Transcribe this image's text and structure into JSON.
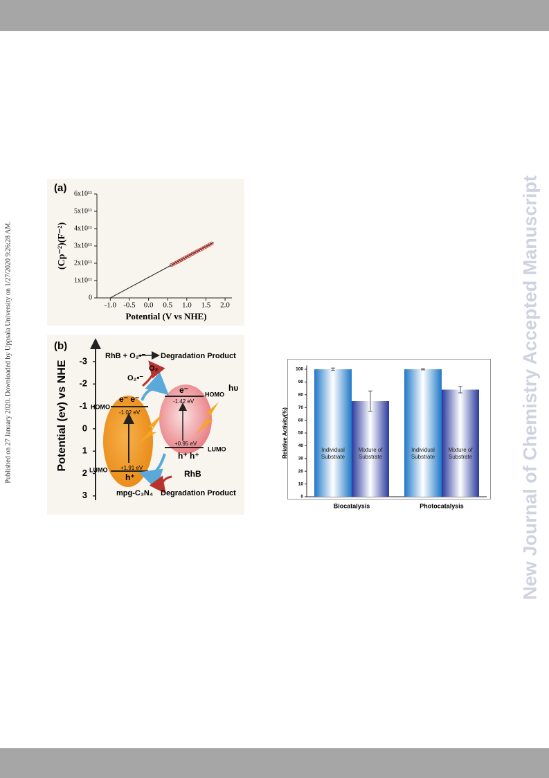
{
  "side_note": "Published on 27 January 2020. Downloaded by Uppsala University on 1/27/2020 9:26:28 AM.",
  "watermark": "New Journal of Chemistry Accepted Manuscript",
  "chart_data": [
    {
      "type": "scatter",
      "label": "(a)",
      "x_label": "Potential (V vs NHE)",
      "y_label": "(Cp⁻²)(F⁻²)",
      "xlim": [
        -1.35,
        2.18
      ],
      "ylim": [
        0,
        600000000000
      ],
      "xticks": [
        {
          "value": -1,
          "label": "-1.0"
        },
        -0.5,
        {
          "value": 0,
          "label": "0.0"
        },
        0.5,
        {
          "value": 1,
          "label": "1.0"
        },
        1.5,
        {
          "value": 2,
          "label": "2.0"
        }
      ],
      "yticks": [
        0,
        {
          "value": 100000000000,
          "label": "1x10¹¹"
        },
        {
          "value": 200000000000,
          "label": "2x10¹¹"
        },
        {
          "value": 300000000000,
          "label": "3x10¹¹"
        },
        {
          "value": 400000000000,
          "label": "4x10¹¹"
        },
        {
          "value": 500000000000,
          "label": "5x10¹¹"
        },
        {
          "value": 600000000000,
          "label": "6x10¹¹"
        }
      ],
      "series": [
        {
          "color": "#d9443a",
          "marker": "circle",
          "x": [
            0.6,
            0.65,
            0.7,
            0.75,
            0.8,
            0.85,
            0.9,
            0.95,
            1.0,
            1.05,
            1.1,
            1.15,
            1.2,
            1.25,
            1.3,
            1.35,
            1.4,
            1.45,
            1.5,
            1.55,
            1.6,
            1.65
          ],
          "values": [
            190000000000.0,
            196000000000.0,
            201000000000.0,
            207000000000.0,
            213000000000.0,
            219000000000.0,
            225000000000.0,
            231000000000.0,
            237000000000.0,
            243000000000.0,
            249000000000.0,
            255000000000.0,
            261000000000.0,
            267000000000.0,
            273000000000.0,
            278000000000.0,
            284000000000.0,
            290000000000.0,
            296000000000.0,
            302000000000.0,
            308000000000.0,
            314000000000.0
          ]
        },
        {
          "color": "#333333",
          "marker": "line",
          "x": [
            -1.0,
            1.7
          ],
          "values": [
            0,
            320000000000.0
          ]
        }
      ]
    },
    {
      "type": "bar",
      "y_label": "Relative  Activity(%)",
      "categories": [
        "Biocatalysis",
        "Photocatalysis"
      ],
      "ylim": [
        0,
        103
      ],
      "yticks": [
        0,
        10,
        20,
        30,
        40,
        50,
        60,
        70,
        80,
        90,
        100
      ],
      "series": [
        {
          "name": "Individual Substrate",
          "color": "#1f78c8",
          "values": [
            100,
            100
          ],
          "errors": [
            1,
            0.5
          ]
        },
        {
          "name": "Mixture of Substrate",
          "color": "#2a3a9e",
          "values": [
            75,
            84
          ],
          "errors": [
            8,
            2.5
          ]
        }
      ]
    }
  ],
  "diagram": {
    "label": "(b)",
    "axis_title": "Potential (ev) vs NHE",
    "ticks": [
      "-3",
      "-2",
      "-1",
      "0",
      "1",
      "2",
      "3"
    ],
    "reaction_top": "RhB + O₂•⁻",
    "product_top": "Degradation Product",
    "o2": "O₂",
    "o2_radical": "O₂•⁻",
    "left": {
      "electrons": "e⁻ e⁻",
      "homo": "HOMO",
      "homo_value": "-1.02 eV",
      "hole": "h⁺",
      "lumo": "LUMO",
      "lumo_value": "+1.91 eV",
      "name": "mpg-C₃N₄"
    },
    "right": {
      "electron": "e⁻",
      "homo_value": "-1.42 eV",
      "homo": "HOMO",
      "light": "hυ",
      "lumo_value": "+0.95 eV",
      "lumo": "LUMO",
      "holes": "h⁺ h⁺"
    },
    "rhb": "RhB",
    "product_bottom": "Degradation Product"
  }
}
